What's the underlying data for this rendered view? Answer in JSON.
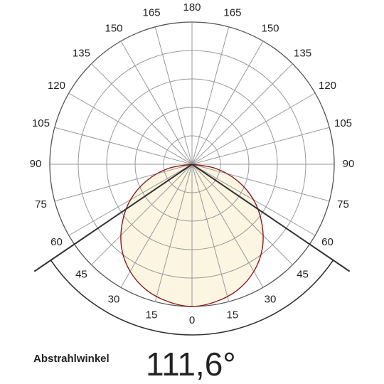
{
  "chart_data": {
    "type": "polar",
    "angle_ticks": [
      0,
      15,
      30,
      45,
      60,
      75,
      90,
      105,
      120,
      135,
      150,
      165,
      180
    ],
    "rlim": [
      0,
      1
    ],
    "rticks": [
      0.2,
      0.4,
      0.6,
      0.8,
      1
    ],
    "series": [
      {
        "color": "#8b1a1a",
        "fill": "#fbf5e2",
        "angles": [
          -90,
          -80,
          -70,
          -60,
          -50,
          -40,
          -30,
          -20,
          -10,
          0,
          10,
          20,
          30,
          40,
          50,
          60,
          70,
          80,
          90
        ],
        "values": [
          0,
          0.17,
          0.34,
          0.5,
          0.64,
          0.77,
          0.87,
          0.94,
          0.98,
          1,
          0.98,
          0.94,
          0.87,
          0.77,
          0.64,
          0.5,
          0.34,
          0.17,
          0
        ]
      }
    ],
    "beam_angle": {
      "label": "Abstrahlwinkel",
      "value": 111.6,
      "value_label": "111,6°"
    }
  }
}
